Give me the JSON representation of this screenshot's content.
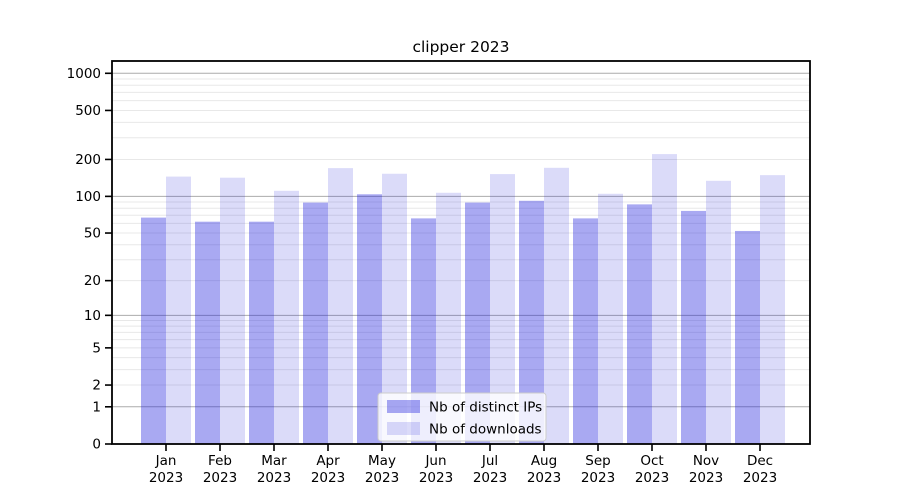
{
  "figure": {
    "title": "clipper 2023",
    "background": "#ffffff"
  },
  "chart_data": {
    "type": "bar",
    "title": "clipper 2023",
    "categories": [
      "Jan 2023",
      "Feb 2023",
      "Mar 2023",
      "Apr 2023",
      "May 2023",
      "Jun 2023",
      "Jul 2023",
      "Aug 2023",
      "Sep 2023",
      "Oct 2023",
      "Nov 2023",
      "Dec 2023"
    ],
    "series": [
      {
        "name": "Nb of distinct IPs",
        "flat_color": "#a8a8f1",
        "base_color": "#1e1edc",
        "opacity": 0.38,
        "values": [
          67,
          62,
          62,
          89,
          104,
          66,
          89,
          92,
          66,
          86,
          76,
          52
        ]
      },
      {
        "name": "Nb of downloads",
        "flat_color": "#d9d9f8",
        "base_color": "#1e1edc",
        "opacity": 0.16,
        "values": [
          145,
          142,
          111,
          170,
          153,
          107,
          152,
          171,
          105,
          221,
          134,
          149
        ]
      }
    ],
    "xlabel": "",
    "ylabel": "",
    "yscale": "log10(1+v)",
    "yticks": [
      0,
      1,
      2,
      5,
      10,
      20,
      50,
      100,
      200,
      500,
      1000
    ],
    "ylim": [
      0,
      1260
    ],
    "grid": true,
    "major_grid_values": [
      1,
      10,
      100,
      1000
    ],
    "legend": {
      "position": "lower-center-inside",
      "entries": [
        "Nb of distinct IPs",
        "Nb of downloads"
      ]
    }
  },
  "colors": {
    "major_grid": "#ababab",
    "minor_grid": "#e8e8e8",
    "axis": "#000000",
    "text": "#000000",
    "legend_border": "#cccccc",
    "legend_bg": "#ffffff"
  }
}
